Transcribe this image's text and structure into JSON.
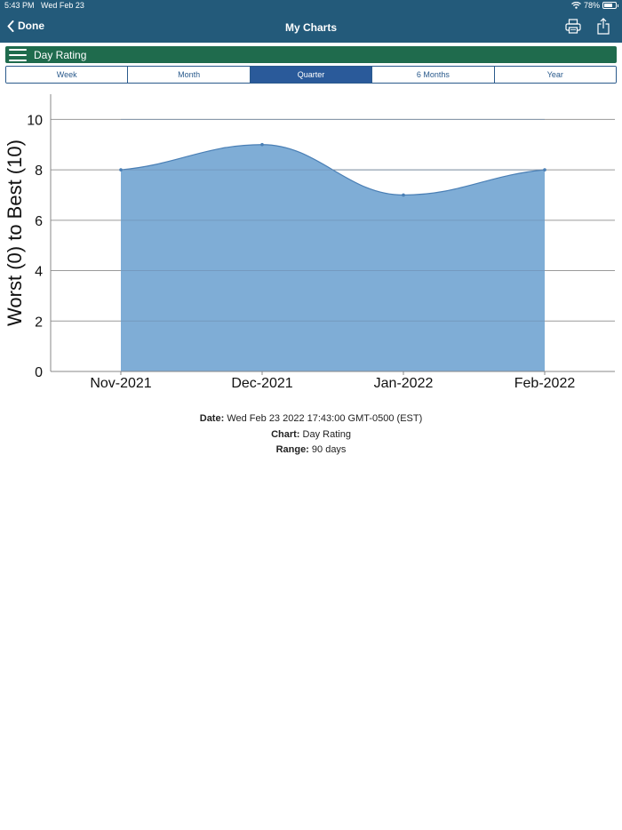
{
  "status": {
    "time": "5:43 PM",
    "date": "Wed Feb 23",
    "battery": "78%",
    "battery_level": 0.78
  },
  "nav": {
    "back_label": "Done",
    "title": "My Charts"
  },
  "chart_selector": {
    "label": "Day Rating"
  },
  "segments": [
    {
      "label": "Week",
      "active": false
    },
    {
      "label": "Month",
      "active": false
    },
    {
      "label": "Quarter",
      "active": true
    },
    {
      "label": "6 Months",
      "active": false
    },
    {
      "label": "Year",
      "active": false
    }
  ],
  "chart_data": {
    "type": "area",
    "categories": [
      "Nov-2021",
      "Dec-2021",
      "Jan-2022",
      "Feb-2022"
    ],
    "values": [
      8,
      9,
      7,
      8
    ],
    "ylabel": "Worst (0) to Best (10)",
    "ylim": [
      0,
      11
    ],
    "yticks": [
      0,
      2,
      4,
      6,
      8,
      10
    ],
    "grid": true,
    "colors": {
      "fill": "#7fadd6",
      "line": "#4a7fb5",
      "grid": "#9a9a9a"
    }
  },
  "info": {
    "date_label": "Date:",
    "date_value": "Wed Feb 23 2022 17:43:00 GMT-0500 (EST)",
    "chart_label": "Chart:",
    "chart_value": "Day Rating",
    "range_label": "Range:",
    "range_value": "90 days"
  },
  "colors": {
    "topbar": "#235a7a",
    "greenbar": "#1f6b4d",
    "segment_active": "#2a5a9a"
  }
}
